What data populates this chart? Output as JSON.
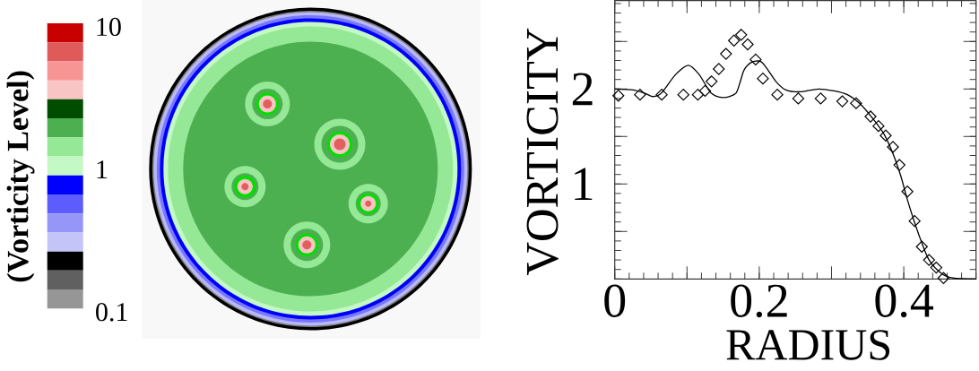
{
  "chart_data": [
    {
      "type": "other",
      "clabel": "(Vorticity Level)",
      "annotations": [
        "10",
        "1",
        "0.1"
      ],
      "colors": [
        "#c80000",
        "#e05a5a",
        "#f79595",
        "#f8c4c4",
        "#004d00",
        "#4caf50",
        "#95e895",
        "#c4f8c4",
        "#0000ff",
        "#5c5cff",
        "#9696f8",
        "#c4c4f8",
        "#000000",
        "#606060",
        "#969696"
      ]
    },
    {
      "type": "line",
      "xlabel": "RADIUS",
      "ylabel": "VORTICITY",
      "xlim": [
        0,
        0.5
      ],
      "ylim": [
        0,
        2.93
      ],
      "xticks": [
        0,
        {
          "value": 0.1,
          "label": null
        },
        0.2,
        {
          "value": 0.3,
          "label": null
        },
        0.4
      ],
      "yticks": [
        {
          "value": 0.5,
          "label": null
        },
        1,
        {
          "value": 1.5,
          "label": null
        },
        2,
        {
          "value": 2.5,
          "label": null
        }
      ],
      "series": [
        {
          "type": "line",
          "color": "#000000",
          "marker": "none",
          "line_style": "solid",
          "x": [
            0,
            0.026,
            0.043,
            0.053,
            0.065,
            0.084,
            0.102,
            0.117,
            0.133,
            0.15,
            0.167,
            0.173,
            0.179,
            0.189,
            0.202,
            0.212,
            0.224,
            0.237,
            0.256,
            0.282,
            0.303,
            0.322,
            0.34,
            0.357,
            0.373,
            0.386,
            0.396,
            0.404,
            0.413,
            0.423,
            0.435,
            0.452,
            0.468,
            0.5
          ],
          "values": [
            2.0,
            1.99,
            1.95,
            1.92,
            1.96,
            2.15,
            2.25,
            2.15,
            1.96,
            1.91,
            1.95,
            2.06,
            2.2,
            2.28,
            2.29,
            2.2,
            2.07,
            1.99,
            1.97,
            2.0,
            1.98,
            1.94,
            1.84,
            1.69,
            1.52,
            1.3,
            1.08,
            0.86,
            0.64,
            0.42,
            0.2,
            0.06,
            0.01,
            0.0
          ]
        },
        {
          "type": "scatter",
          "color": "#000000",
          "marker": "diamond",
          "x": [
            0.005,
            0.035,
            0.065,
            0.095,
            0.115,
            0.125,
            0.134,
            0.144,
            0.154,
            0.165,
            0.175,
            0.184,
            0.195,
            0.205,
            0.225,
            0.254,
            0.285,
            0.315,
            0.334,
            0.354,
            0.365,
            0.375,
            0.385,
            0.394,
            0.405,
            0.415,
            0.425,
            0.435,
            0.445,
            0.455
          ],
          "values": [
            1.93,
            1.94,
            1.94,
            1.94,
            1.94,
            1.98,
            2.08,
            2.21,
            2.37,
            2.51,
            2.57,
            2.47,
            2.31,
            2.11,
            1.94,
            1.9,
            1.9,
            1.87,
            1.85,
            1.71,
            1.61,
            1.51,
            1.39,
            1.2,
            0.92,
            0.61,
            0.34,
            0.2,
            0.12,
            0.01
          ]
        }
      ]
    }
  ]
}
